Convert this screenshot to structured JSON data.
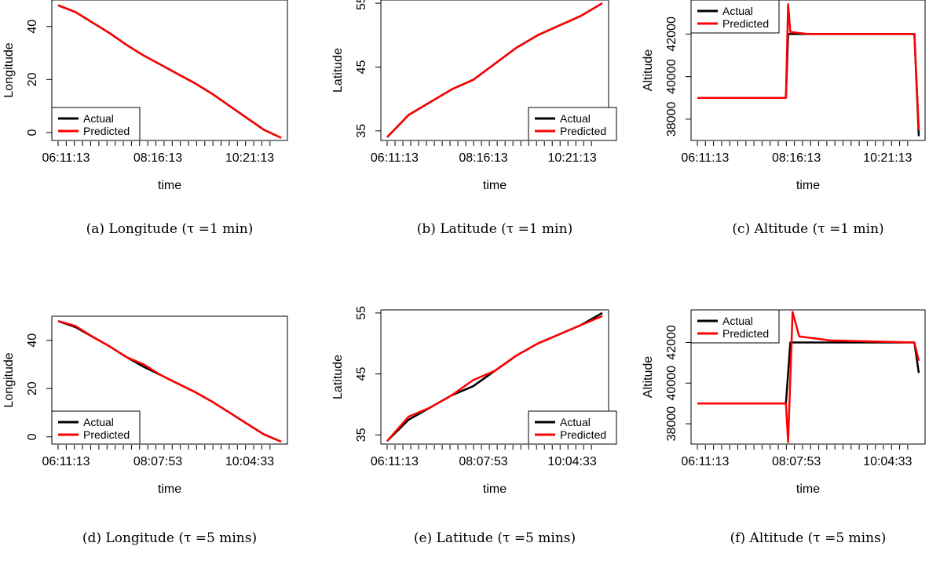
{
  "chart_data": [
    {
      "type": "line",
      "caption": "(a) Longitude (τ =1 min)",
      "xlabel": "time",
      "ylabel": "Longitude",
      "xtick_labels": [
        "06:11:13",
        "08:16:13",
        "10:21:13"
      ],
      "ytick_labels": [
        "0",
        "20",
        "40"
      ],
      "ylim": [
        -3,
        50
      ],
      "legend": {
        "position": "bottom-left",
        "entries": [
          "Actual",
          "Predicted"
        ]
      },
      "colors": {
        "Actual": "#000000",
        "Predicted": "#ff0000"
      },
      "series": [
        {
          "name": "Actual",
          "values": [
            48,
            45.5,
            41.5,
            37.5,
            33,
            29,
            25.5,
            22,
            18.5,
            14.5,
            10,
            5.5,
            1,
            -2
          ]
        },
        {
          "name": "Predicted",
          "values": [
            48,
            45.5,
            41.5,
            37.5,
            33,
            29,
            25.5,
            22,
            18.5,
            14.5,
            10,
            5.5,
            1,
            -2
          ]
        }
      ]
    },
    {
      "type": "line",
      "caption": "(b) Latitude (τ =1 min)",
      "xlabel": "time",
      "ylabel": "Latitude",
      "xtick_labels": [
        "06:11:13",
        "08:16:13",
        "10:21:13"
      ],
      "ytick_labels": [
        "35",
        "45",
        "55"
      ],
      "ylim": [
        33.5,
        55.5
      ],
      "legend": {
        "position": "bottom-right",
        "entries": [
          "Actual",
          "Predicted"
        ]
      },
      "colors": {
        "Actual": "#000000",
        "Predicted": "#ff0000"
      },
      "series": [
        {
          "name": "Actual",
          "values": [
            34,
            37.5,
            39.5,
            41.5,
            43,
            45.5,
            48,
            50,
            51.5,
            53,
            55
          ]
        },
        {
          "name": "Predicted",
          "values": [
            34,
            37.5,
            39.5,
            41.5,
            43,
            45.5,
            48,
            50,
            51.5,
            53,
            55
          ]
        }
      ]
    },
    {
      "type": "line",
      "caption": "(c) Altitude (τ =1 min)",
      "xlabel": "time",
      "ylabel": "Altitude",
      "xtick_labels": [
        "06:11:13",
        "08:16:13",
        "10:21:13"
      ],
      "ytick_labels": [
        "38000",
        "40000",
        "42000"
      ],
      "ylim": [
        37000,
        43600
      ],
      "legend": {
        "position": "top-left",
        "entries": [
          "Actual",
          "Predicted"
        ]
      },
      "colors": {
        "Actual": "#000000",
        "Predicted": "#ff0000"
      },
      "series": [
        {
          "name": "Actual",
          "points": [
            [
              0,
              39000
            ],
            [
              0.4,
              39000
            ],
            [
              0.41,
              42000
            ],
            [
              0.98,
              42000
            ],
            [
              1,
              37200
            ]
          ]
        },
        {
          "name": "Predicted",
          "points": [
            [
              0,
              39000
            ],
            [
              0.4,
              39000
            ],
            [
              0.41,
              43400
            ],
            [
              0.42,
              42100
            ],
            [
              0.5,
              42000
            ],
            [
              0.98,
              42000
            ],
            [
              1,
              37500
            ]
          ]
        }
      ]
    },
    {
      "type": "line",
      "caption": "(d) Longitude (τ =5 mins)",
      "xlabel": "time",
      "ylabel": "Longitude",
      "xtick_labels": [
        "06:11:13",
        "08:07:53",
        "10:04:33"
      ],
      "ytick_labels": [
        "0",
        "20",
        "40"
      ],
      "ylim": [
        -3,
        50
      ],
      "legend": {
        "position": "bottom-left",
        "entries": [
          "Actual",
          "Predicted"
        ]
      },
      "colors": {
        "Actual": "#000000",
        "Predicted": "#ff0000"
      },
      "series": [
        {
          "name": "Actual",
          "values": [
            48,
            45.5,
            41.5,
            37.5,
            33,
            29,
            25.5,
            22,
            18.5,
            14.5,
            10,
            5.5,
            1,
            -2
          ]
        },
        {
          "name": "Predicted",
          "values": [
            48,
            46,
            41.5,
            37.5,
            33,
            30,
            25.5,
            22,
            18.5,
            14.5,
            10,
            5.5,
            1,
            -2
          ]
        }
      ]
    },
    {
      "type": "line",
      "caption": "(e) Latitude (τ =5 mins)",
      "xlabel": "time",
      "ylabel": "Latitude",
      "xtick_labels": [
        "06:11:13",
        "08:07:53",
        "10:04:33"
      ],
      "ytick_labels": [
        "35",
        "45",
        "55"
      ],
      "ylim": [
        33.5,
        55.5
      ],
      "legend": {
        "position": "bottom-right",
        "entries": [
          "Actual",
          "Predicted"
        ]
      },
      "colors": {
        "Actual": "#000000",
        "Predicted": "#ff0000"
      },
      "series": [
        {
          "name": "Actual",
          "values": [
            34,
            37.5,
            39.5,
            41.5,
            43,
            45.5,
            48,
            50,
            51.5,
            53,
            55
          ]
        },
        {
          "name": "Predicted",
          "values": [
            34,
            38,
            39.5,
            41.5,
            44,
            45.5,
            48,
            50,
            51.5,
            53,
            54.5
          ]
        }
      ]
    },
    {
      "type": "line",
      "caption": "(f) Altitude (τ =5 mins)",
      "xlabel": "time",
      "ylabel": "Altitude",
      "xtick_labels": [
        "06:11:13",
        "08:07:53",
        "10:04:33"
      ],
      "ytick_labels": [
        "38000",
        "40000",
        "42000"
      ],
      "ylim": [
        37000,
        43600
      ],
      "legend": {
        "position": "top-left",
        "entries": [
          "Actual",
          "Predicted"
        ]
      },
      "colors": {
        "Actual": "#000000",
        "Predicted": "#ff0000"
      },
      "series": [
        {
          "name": "Actual",
          "points": [
            [
              0,
              39000
            ],
            [
              0.4,
              39000
            ],
            [
              0.42,
              42000
            ],
            [
              0.98,
              42000
            ],
            [
              1,
              40500
            ]
          ]
        },
        {
          "name": "Predicted",
          "points": [
            [
              0,
              39000
            ],
            [
              0.4,
              39000
            ],
            [
              0.41,
              37100
            ],
            [
              0.43,
              43500
            ],
            [
              0.46,
              42300
            ],
            [
              0.6,
              42100
            ],
            [
              0.98,
              42000
            ],
            [
              1,
              41100
            ]
          ]
        }
      ]
    }
  ]
}
